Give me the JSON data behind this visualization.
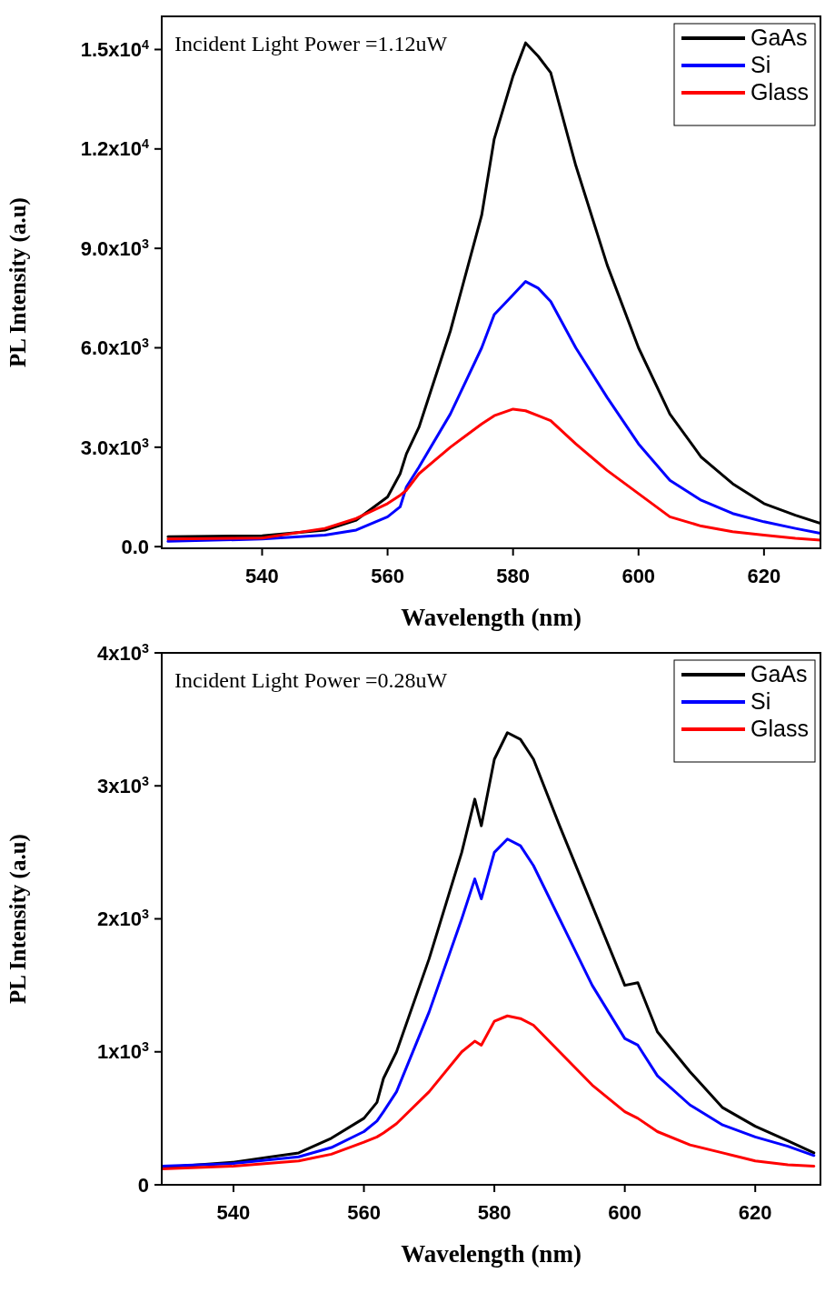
{
  "chart_data": [
    {
      "type": "line",
      "xlabel": "Wavelength (nm)",
      "ylabel": "PL Intensity (a.u)",
      "annotations": [
        "Incident Light Power =1.12uW"
      ],
      "legend": "top right",
      "grid": false,
      "xlim": [
        524,
        629
      ],
      "xticks": [
        540,
        560,
        580,
        600,
        620
      ],
      "ylim": [
        -50,
        16000
      ],
      "yticks": [
        {
          "value": 0,
          "label": "0.0"
        },
        {
          "value": 3000,
          "label": "3.0x10$^{3}$"
        },
        {
          "value": 6000,
          "label": "6.0x10$^{3}$"
        },
        {
          "value": 9000,
          "label": "9.0x10$^{3}$"
        },
        {
          "value": 12000,
          "label": "1.2x10$^{4}$"
        },
        {
          "value": 15000,
          "label": "1.5x10$^{4}$"
        }
      ],
      "x": [
        525,
        540,
        550,
        555,
        560,
        562,
        563,
        565,
        570,
        575,
        577,
        580,
        582,
        584,
        586,
        590,
        595,
        600,
        605,
        610,
        615,
        620,
        625,
        629
      ],
      "series": [
        {
          "name": "GaAs",
          "color": "#000000",
          "values": [
            300,
            330,
            500,
            800,
            1500,
            2200,
            2800,
            3600,
            6500,
            10000,
            12300,
            14200,
            15200,
            14800,
            14300,
            11500,
            8500,
            6000,
            4000,
            2700,
            1900,
            1300,
            950,
            700
          ]
        },
        {
          "name": "Si",
          "color": "#0000ff",
          "values": [
            160,
            230,
            350,
            500,
            900,
            1200,
            1800,
            2400,
            4000,
            6000,
            7000,
            7600,
            8000,
            7800,
            7400,
            6000,
            4500,
            3100,
            2000,
            1400,
            1000,
            750,
            550,
            400
          ]
        },
        {
          "name": "Glass",
          "color": "#ff0000",
          "values": [
            230,
            260,
            550,
            850,
            1300,
            1550,
            1700,
            2200,
            3000,
            3700,
            3950,
            4150,
            4100,
            3950,
            3800,
            3100,
            2300,
            1600,
            900,
            620,
            450,
            350,
            250,
            200
          ]
        }
      ]
    },
    {
      "type": "line",
      "xlabel": "Wavelength (nm)",
      "ylabel": "PL Intensity (a.u)",
      "annotations": [
        "Incident Light Power =0.28uW"
      ],
      "legend": "top right",
      "grid": false,
      "xlim": [
        529,
        630
      ],
      "xticks": [
        540,
        560,
        580,
        600,
        620
      ],
      "ylim": [
        0,
        4000
      ],
      "yticks": [
        0,
        {
          "value": 1000,
          "label": "1x10$^{3}$"
        },
        {
          "value": 2000,
          "label": "2x10$^{3}$"
        },
        {
          "value": 3000,
          "label": "3x10$^{3}$"
        },
        {
          "value": 4000,
          "label": "4x10$^{3}$"
        }
      ],
      "x": [
        529,
        540,
        550,
        555,
        560,
        562,
        563,
        565,
        570,
        575,
        577,
        578,
        580,
        582,
        584,
        586,
        590,
        595,
        600,
        602,
        605,
        610,
        615,
        620,
        625,
        629
      ],
      "series": [
        {
          "name": "GaAs",
          "color": "#000000",
          "values": [
            130,
            170,
            240,
            350,
            500,
            620,
            800,
            1000,
            1700,
            2500,
            2900,
            2700,
            3200,
            3400,
            3350,
            3200,
            2700,
            2100,
            1500,
            1520,
            1150,
            850,
            580,
            440,
            330,
            240
          ]
        },
        {
          "name": "Si",
          "color": "#0000ff",
          "values": [
            140,
            160,
            210,
            280,
            400,
            480,
            550,
            700,
            1300,
            2000,
            2300,
            2150,
            2500,
            2600,
            2550,
            2400,
            2000,
            1500,
            1100,
            1050,
            820,
            600,
            450,
            360,
            290,
            220
          ]
        },
        {
          "name": "Glass",
          "color": "#ff0000",
          "values": [
            120,
            140,
            180,
            230,
            320,
            360,
            390,
            460,
            700,
            1000,
            1080,
            1050,
            1230,
            1270,
            1250,
            1200,
            1000,
            750,
            550,
            500,
            400,
            300,
            240,
            180,
            150,
            140
          ]
        }
      ]
    }
  ]
}
